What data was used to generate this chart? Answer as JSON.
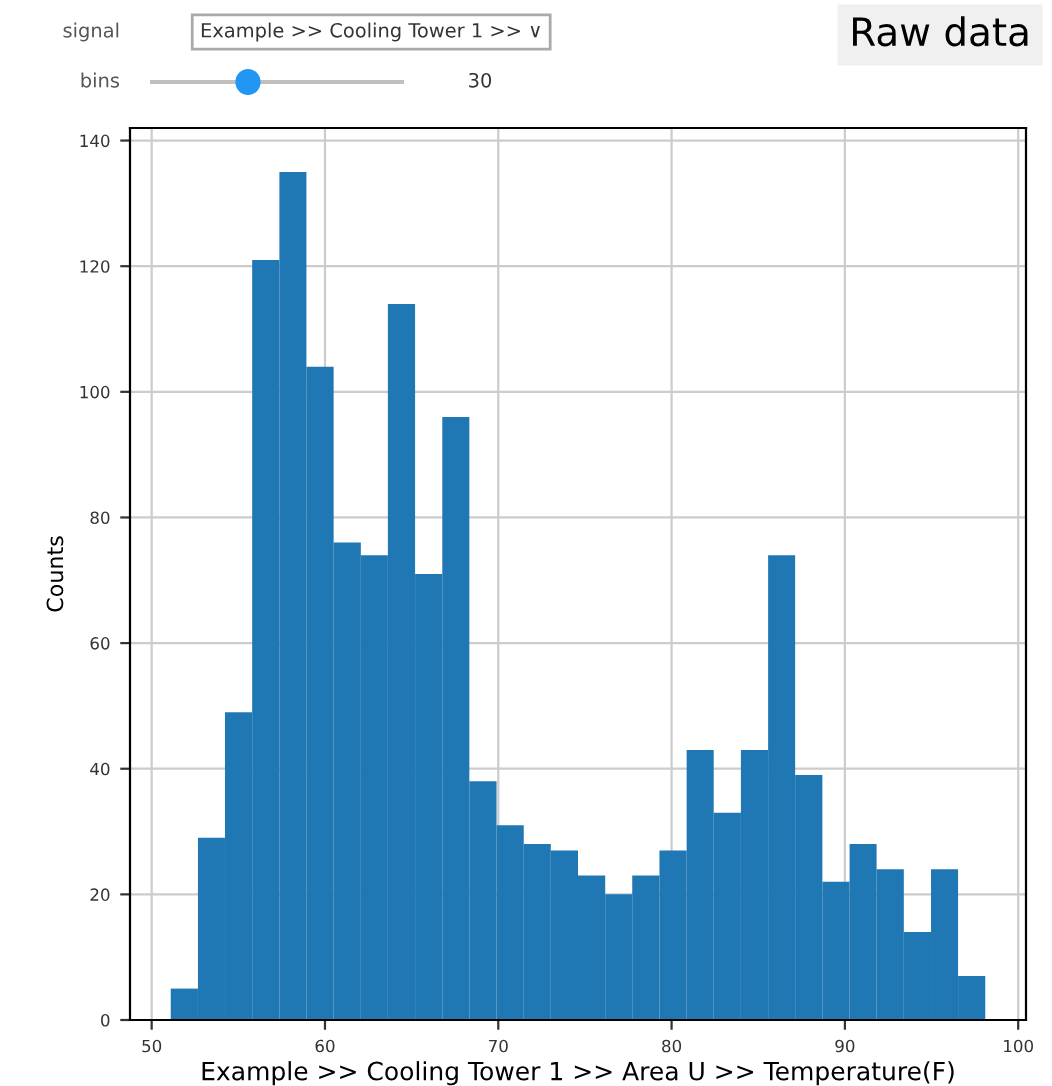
{
  "chart_data": {
    "type": "histogram",
    "xlabel": "Example >> Cooling Tower 1 >> Area U >> Temperature(F)",
    "ylabel": "Counts",
    "bins": [
      51.1,
      52.67,
      54.23,
      55.8,
      57.37,
      58.93,
      60.5,
      62.07,
      63.63,
      65.2,
      66.77,
      68.33,
      69.9,
      71.47,
      73.03,
      74.6,
      76.17,
      77.73,
      79.3,
      80.87,
      82.43,
      84.0,
      85.57,
      87.13,
      88.7,
      90.27,
      91.83,
      93.4,
      94.97,
      96.53,
      98.1
    ],
    "values": [
      5,
      29,
      49,
      121,
      135,
      104,
      76,
      74,
      114,
      71,
      96,
      38,
      31,
      28,
      27,
      23,
      20,
      23,
      27,
      43,
      33,
      43,
      74,
      39,
      22,
      28,
      24,
      14,
      24,
      7
    ],
    "color": "#1f77b4",
    "xlim": [
      48.75,
      100.45
    ],
    "ylim": [
      0,
      142
    ],
    "xticks": [
      50,
      60,
      70,
      80,
      90,
      100
    ],
    "yticks": [
      0,
      20,
      40,
      60,
      80,
      100,
      120,
      140
    ],
    "grid": true,
    "annotations": [
      "Raw data",
      "signal",
      "Example >> Cooling Tower 1 >> ∨",
      "bins",
      "30"
    ]
  }
}
